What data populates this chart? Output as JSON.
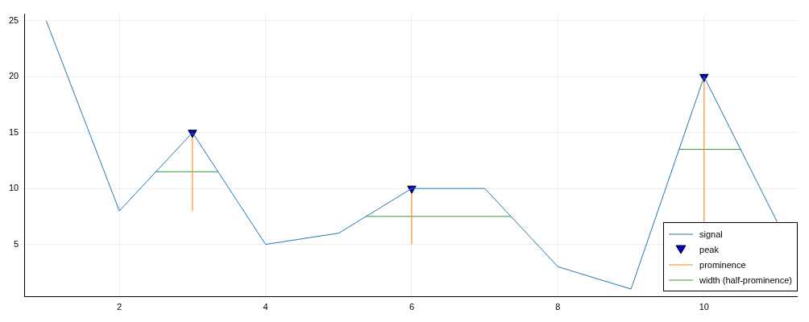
{
  "chart_data": {
    "type": "line",
    "xlim": [
      0.7,
      11.27
    ],
    "xticks": [
      2,
      4,
      6,
      8,
      10
    ],
    "ylim": [
      0.3,
      25.6
    ],
    "yticks": [
      5,
      10,
      15,
      20,
      25
    ],
    "grid": true,
    "legend": "bottom right",
    "series": [
      {
        "name": "signal",
        "type": "line",
        "color": "#1f77b4",
        "marker": "none",
        "x": [
          1,
          2,
          3,
          4,
          5,
          6,
          7,
          8,
          9,
          10,
          11
        ],
        "values": [
          25,
          8,
          15,
          5,
          6,
          10,
          10,
          3,
          1,
          20,
          7
        ]
      },
      {
        "name": "peak",
        "type": "scatter",
        "color": "#0000cc",
        "marker": "triangle",
        "x": [
          3,
          6,
          10
        ],
        "values": [
          15,
          10,
          20
        ]
      },
      {
        "name": "prominence",
        "type": "line",
        "color": "#ff7f0e",
        "marker": "none",
        "x": [
          3,
          3,
          null,
          6,
          6,
          null,
          10,
          10
        ],
        "values": [
          8,
          15,
          null,
          5,
          10,
          null,
          7,
          20
        ]
      },
      {
        "name": "width (half-prominence)",
        "type": "line",
        "color": "#2ca02c",
        "marker": "none",
        "x": [
          2.5,
          3.35,
          null,
          5.375,
          7.357,
          null,
          9.658,
          10.5
        ],
        "values": [
          11.5,
          11.5,
          null,
          7.5,
          7.5,
          null,
          13.5,
          13.5
        ]
      }
    ]
  }
}
